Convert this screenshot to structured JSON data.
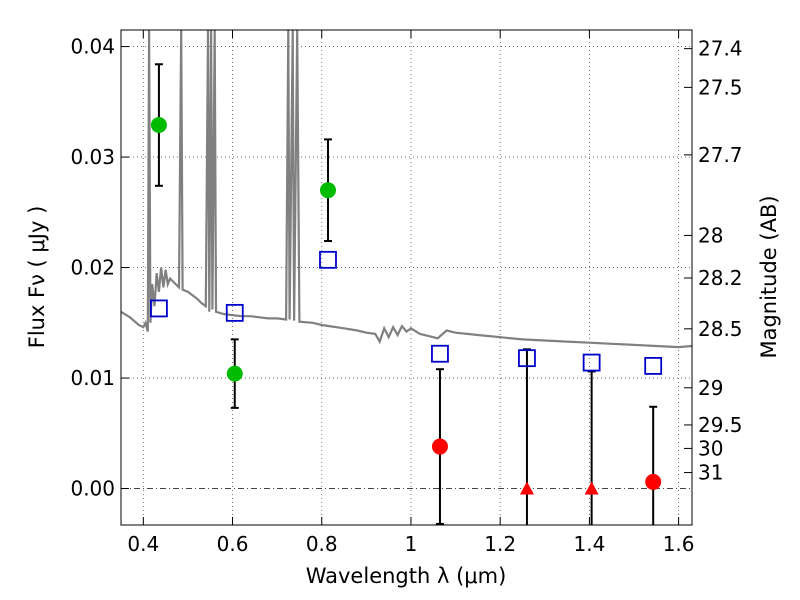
{
  "chart_data": {
    "type": "scatter",
    "xlabel": "Wavelength  λ (μm)",
    "ylabel_left": "Flux  Fν  ( μJy )",
    "ylabel_right": "Magnitude (AB)",
    "xlim": [
      0.35,
      1.63
    ],
    "ylim": [
      -0.0033,
      0.0415
    ],
    "x_ticks": [
      {
        "value": 0.4,
        "label": "0.4"
      },
      {
        "value": 0.6,
        "label": "0.6"
      },
      {
        "value": 0.8,
        "label": "0.8"
      },
      {
        "value": 1.0,
        "label": "1"
      },
      {
        "value": 1.2,
        "label": "1.2"
      },
      {
        "value": 1.4,
        "label": "1.4"
      },
      {
        "value": 1.6,
        "label": "1.6"
      }
    ],
    "y_ticks": [
      {
        "value": 0.0,
        "label": "0.00"
      },
      {
        "value": 0.01,
        "label": "0.01"
      },
      {
        "value": 0.02,
        "label": "0.02"
      },
      {
        "value": 0.03,
        "label": "0.03"
      },
      {
        "value": 0.04,
        "label": "0.04"
      }
    ],
    "magnitude_ticks": [
      {
        "value": 27.4,
        "label": "27.4"
      },
      {
        "value": 27.5,
        "label": "27.5"
      },
      {
        "value": 27.7,
        "label": "27.7"
      },
      {
        "value": 28,
        "label": "28"
      },
      {
        "value": 28.2,
        "label": "28.2"
      },
      {
        "value": 28.5,
        "label": "28.5"
      },
      {
        "value": 29,
        "label": "29"
      },
      {
        "value": 29.5,
        "label": "29.5"
      },
      {
        "value": 30,
        "label": "30"
      },
      {
        "value": 31,
        "label": "31"
      }
    ],
    "grid": true,
    "colors": {
      "detection": "#00bb00",
      "upper_limit": "#ff0000",
      "model": "#0000cc",
      "spectrum": "#808080"
    },
    "series": [
      {
        "marker": "circle",
        "color": "#00bb00",
        "points": [
          {
            "x": 0.435,
            "y": 0.0329,
            "err": 0.0055
          },
          {
            "x": 0.605,
            "y": 0.0104,
            "err": 0.0031
          },
          {
            "x": 0.814,
            "y": 0.027,
            "err": 0.0046
          }
        ]
      },
      {
        "marker": "circle",
        "color": "#ff0000",
        "points": [
          {
            "x": 1.065,
            "y": 0.0038,
            "err": 0.007
          },
          {
            "x": 1.543,
            "y": 0.0006,
            "err": 0.0068
          }
        ]
      },
      {
        "marker": "triangle",
        "color": "#ff0000",
        "points": [
          {
            "x": 1.26,
            "y": 0.0,
            "err_up": 0.0126,
            "err_down": 0.0034
          },
          {
            "x": 1.405,
            "y": 0.0,
            "err_up": 0.0106,
            "err_down": 0.0034
          }
        ]
      },
      {
        "marker": "open-square",
        "color": "#0000cc",
        "points": [
          {
            "x": 0.435,
            "y": 0.0163
          },
          {
            "x": 0.605,
            "y": 0.0159
          },
          {
            "x": 0.814,
            "y": 0.0207
          },
          {
            "x": 1.065,
            "y": 0.0122
          },
          {
            "x": 1.26,
            "y": 0.0118
          },
          {
            "x": 1.405,
            "y": 0.0114
          },
          {
            "x": 1.543,
            "y": 0.0111
          }
        ]
      },
      {
        "line": true,
        "color": "#808080",
        "points": [
          [
            0.35,
            0.016
          ],
          [
            0.37,
            0.0155
          ],
          [
            0.39,
            0.0148
          ],
          [
            0.4,
            0.0146
          ],
          [
            0.405,
            0.015
          ],
          [
            0.41,
            0.0142
          ],
          [
            0.413,
            0.0415
          ],
          [
            0.416,
            0.015
          ],
          [
            0.42,
            0.0185
          ],
          [
            0.425,
            0.0165
          ],
          [
            0.43,
            0.0195
          ],
          [
            0.435,
            0.0178
          ],
          [
            0.44,
            0.02
          ],
          [
            0.445,
            0.0182
          ],
          [
            0.45,
            0.0198
          ],
          [
            0.455,
            0.0185
          ],
          [
            0.46,
            0.019
          ],
          [
            0.47,
            0.0186
          ],
          [
            0.48,
            0.0182
          ],
          [
            0.485,
            0.0415
          ],
          [
            0.488,
            0.018
          ],
          [
            0.5,
            0.0178
          ],
          [
            0.52,
            0.0172
          ],
          [
            0.53,
            0.0168
          ],
          [
            0.54,
            0.0165
          ],
          [
            0.545,
            0.0415
          ],
          [
            0.548,
            0.016
          ],
          [
            0.552,
            0.0415
          ],
          [
            0.555,
            0.0162
          ],
          [
            0.56,
            0.0415
          ],
          [
            0.563,
            0.016
          ],
          [
            0.58,
            0.0158
          ],
          [
            0.6,
            0.0157
          ],
          [
            0.62,
            0.0156
          ],
          [
            0.64,
            0.0156
          ],
          [
            0.66,
            0.0155
          ],
          [
            0.68,
            0.0154
          ],
          [
            0.7,
            0.0154
          ],
          [
            0.72,
            0.0153
          ],
          [
            0.725,
            0.0415
          ],
          [
            0.728,
            0.0153
          ],
          [
            0.735,
            0.0415
          ],
          [
            0.738,
            0.0152
          ],
          [
            0.745,
            0.0415
          ],
          [
            0.75,
            0.0151
          ],
          [
            0.78,
            0.015
          ],
          [
            0.8,
            0.0148
          ],
          [
            0.85,
            0.0145
          ],
          [
            0.88,
            0.0143
          ],
          [
            0.9,
            0.0141
          ],
          [
            0.92,
            0.014
          ],
          [
            0.93,
            0.0133
          ],
          [
            0.94,
            0.0145
          ],
          [
            0.95,
            0.0137
          ],
          [
            0.96,
            0.0146
          ],
          [
            0.97,
            0.0139
          ],
          [
            0.98,
            0.0147
          ],
          [
            0.99,
            0.0142
          ],
          [
            1.0,
            0.0145
          ],
          [
            1.02,
            0.014
          ],
          [
            1.04,
            0.0138
          ],
          [
            1.06,
            0.0136
          ],
          [
            1.08,
            0.0143
          ],
          [
            1.1,
            0.0141
          ],
          [
            1.15,
            0.0139
          ],
          [
            1.2,
            0.0137
          ],
          [
            1.25,
            0.0135
          ],
          [
            1.3,
            0.0134
          ],
          [
            1.35,
            0.0133
          ],
          [
            1.4,
            0.0132
          ],
          [
            1.45,
            0.0131
          ],
          [
            1.5,
            0.013
          ],
          [
            1.55,
            0.0129
          ],
          [
            1.6,
            0.0128
          ],
          [
            1.63,
            0.0129
          ]
        ]
      }
    ]
  }
}
